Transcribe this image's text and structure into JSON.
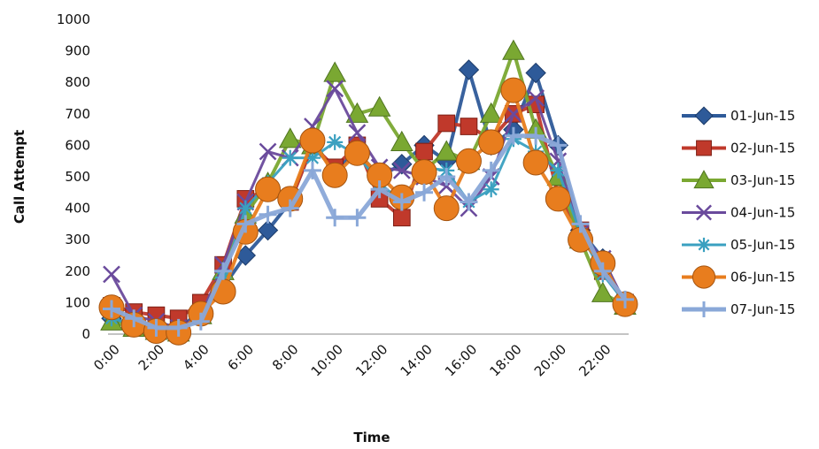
{
  "chart_data": {
    "type": "line",
    "title": "",
    "xlabel": "Time",
    "ylabel": "Call Attempt",
    "ylim": [
      0,
      1000
    ],
    "yticks": [
      "0",
      "100",
      "200",
      "300",
      "400",
      "500",
      "600",
      "700",
      "800",
      "900",
      "1000"
    ],
    "x_tick_labels": [
      "0:00",
      "2:00",
      "4:00",
      "6:00",
      "8:00",
      "10:00",
      "12:00",
      "14:00",
      "16:00",
      "18:00",
      "20:00",
      "22:00"
    ],
    "x": [
      0,
      1,
      2,
      3,
      4,
      5,
      6,
      7,
      8,
      9,
      10,
      11,
      12,
      13,
      14,
      15,
      16,
      17,
      18,
      19,
      20,
      21,
      22,
      23
    ],
    "legend_position": "right",
    "grid": false,
    "series": [
      {
        "name": "01-Jun-15",
        "marker": "diamond",
        "color": "#2e5a99",
        "values": [
          50,
          30,
          20,
          10,
          80,
          150,
          250,
          330,
          420,
          600,
          520,
          580,
          500,
          540,
          600,
          550,
          840,
          600,
          650,
          830,
          600,
          330,
          240,
          90
        ]
      },
      {
        "name": "02-Jun-15",
        "marker": "square",
        "color": "#c0392b",
        "values": [
          90,
          70,
          60,
          50,
          100,
          220,
          430,
          460,
          420,
          600,
          530,
          600,
          430,
          370,
          580,
          670,
          660,
          620,
          700,
          730,
          440,
          330,
          200,
          100
        ]
      },
      {
        "name": "03-Jun-15",
        "marker": "triangle",
        "color": "#7aa832",
        "values": [
          40,
          20,
          10,
          5,
          60,
          200,
          380,
          480,
          620,
          600,
          830,
          700,
          720,
          610,
          520,
          580,
          550,
          700,
          900,
          650,
          500,
          300,
          130,
          90
        ]
      },
      {
        "name": "04-Jun-15",
        "marker": "x",
        "color": "#6a4a9c",
        "values": [
          190,
          60,
          40,
          20,
          60,
          220,
          420,
          580,
          560,
          660,
          780,
          640,
          530,
          520,
          500,
          470,
          400,
          500,
          700,
          750,
          550,
          320,
          240,
          100
        ]
      },
      {
        "name": "05-Jun-15",
        "marker": "star",
        "color": "#3aa0c0",
        "values": [
          50,
          30,
          20,
          10,
          50,
          180,
          400,
          480,
          560,
          560,
          610,
          570,
          480,
          420,
          530,
          520,
          420,
          460,
          620,
          580,
          520,
          320,
          190,
          100
        ]
      },
      {
        "name": "06-Jun-15",
        "marker": "circle",
        "color": "#e87d1e",
        "values": [
          85,
          30,
          10,
          5,
          65,
          135,
          325,
          460,
          430,
          615,
          505,
          575,
          505,
          435,
          515,
          400,
          550,
          610,
          775,
          545,
          430,
          300,
          225,
          95
        ]
      },
      {
        "name": "07-Jun-15",
        "marker": "plus",
        "color": "#8aa8d8",
        "values": [
          80,
          50,
          20,
          20,
          40,
          200,
          350,
          380,
          400,
          520,
          370,
          370,
          460,
          420,
          450,
          500,
          420,
          520,
          630,
          630,
          600,
          350,
          200,
          110
        ]
      }
    ]
  }
}
